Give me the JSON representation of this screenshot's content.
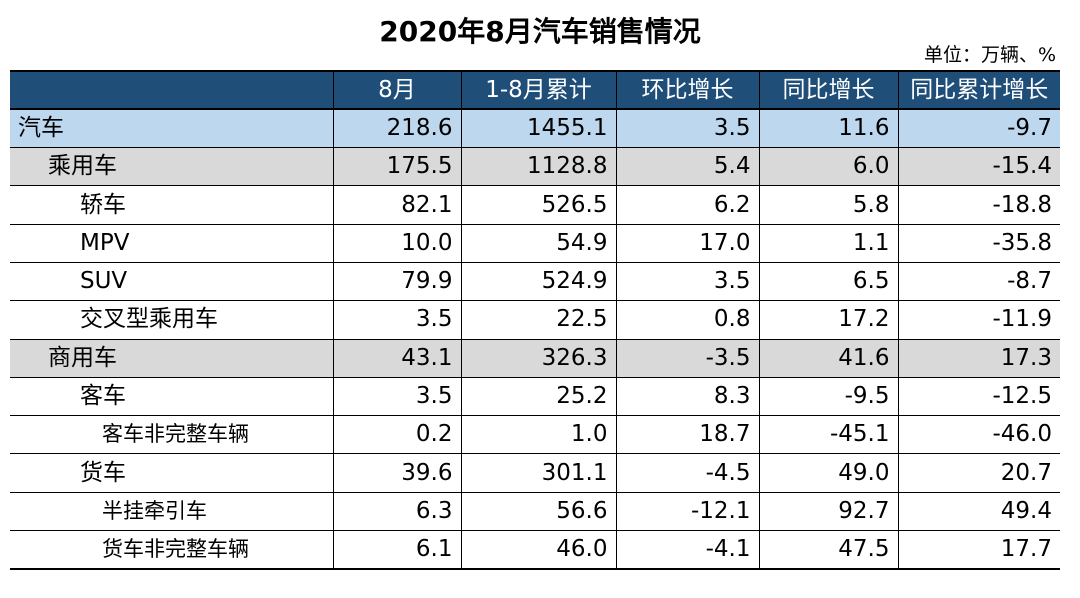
{
  "title": "2020年8月汽车销售情况",
  "unit": "单位：万辆、%",
  "table": {
    "headers": [
      "",
      "8月",
      "1-8月累计",
      "环比增长",
      "同比增长",
      "同比累计增长"
    ],
    "rows": [
      {
        "name": "汽车",
        "level": 0,
        "values": [
          "218.6",
          "1455.1",
          "3.5",
          "11.6",
          "-9.7"
        ]
      },
      {
        "name": "乘用车",
        "level": 1,
        "values": [
          "175.5",
          "1128.8",
          "5.4",
          "6.0",
          "-15.4"
        ]
      },
      {
        "name": "轿车",
        "level": 2,
        "values": [
          "82.1",
          "526.5",
          "6.2",
          "5.8",
          "-18.8"
        ]
      },
      {
        "name": "MPV",
        "level": 2,
        "values": [
          "10.0",
          "54.9",
          "17.0",
          "1.1",
          "-35.8"
        ]
      },
      {
        "name": "SUV",
        "level": 2,
        "values": [
          "79.9",
          "524.9",
          "3.5",
          "6.5",
          "-8.7"
        ]
      },
      {
        "name": "交叉型乘用车",
        "level": 2,
        "values": [
          "3.5",
          "22.5",
          "0.8",
          "17.2",
          "-11.9"
        ]
      },
      {
        "name": "商用车",
        "level": 1,
        "values": [
          "43.1",
          "326.3",
          "-3.5",
          "41.6",
          "17.3"
        ]
      },
      {
        "name": "客车",
        "level": 2,
        "values": [
          "3.5",
          "25.2",
          "8.3",
          "-9.5",
          "-12.5"
        ]
      },
      {
        "name": "客车非完整车辆",
        "level": 3,
        "values": [
          "0.2",
          "1.0",
          "18.7",
          "-45.1",
          "-46.0"
        ]
      },
      {
        "name": "货车",
        "level": 2,
        "values": [
          "39.6",
          "301.1",
          "-4.5",
          "49.0",
          "20.7"
        ]
      },
      {
        "name": "半挂牵引车",
        "level": 3,
        "values": [
          "6.3",
          "56.6",
          "-12.1",
          "92.7",
          "49.4"
        ]
      },
      {
        "name": "货车非完整车辆",
        "level": 3,
        "values": [
          "6.1",
          "46.0",
          "-4.1",
          "47.5",
          "17.7"
        ]
      }
    ]
  },
  "colors": {
    "header_bg": "#1F4E79",
    "total_row_bg": "#BDD7EE",
    "category_row_bg": "#D9D9D9"
  }
}
